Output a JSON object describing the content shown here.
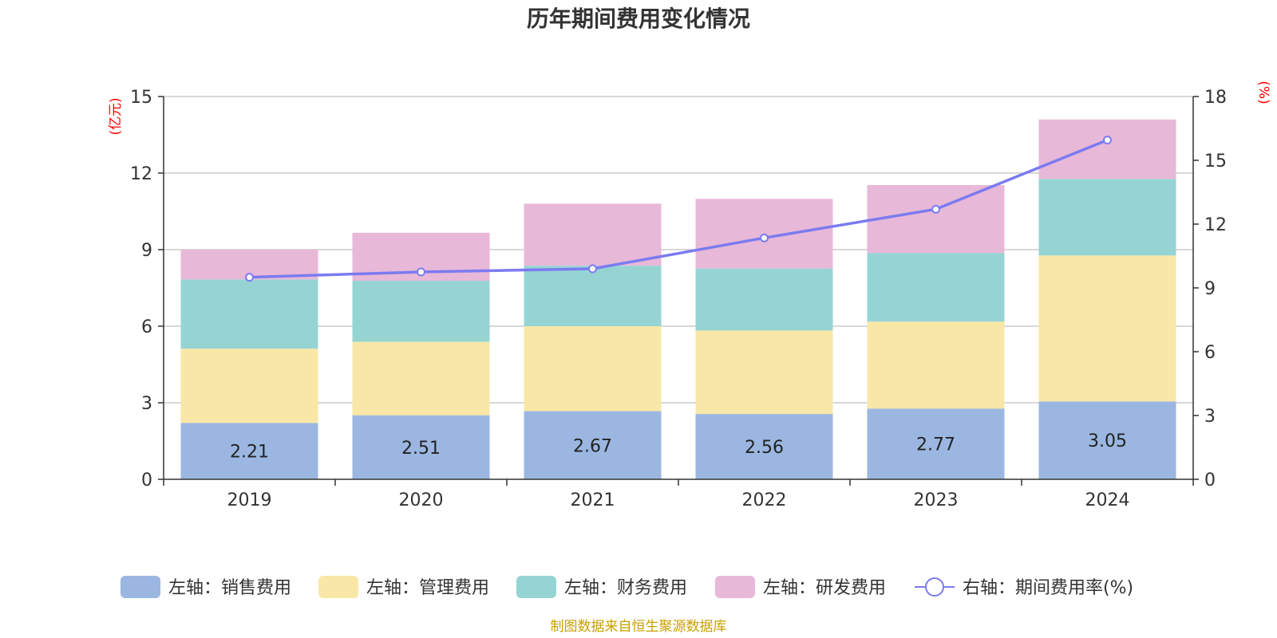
{
  "title": "历年期间费用变化情况",
  "source": "制图数据来自恒生聚源数据库",
  "colors": {
    "sales": "#9bb7e1",
    "admin": "#f8e7a7",
    "finance": "#96d4d4",
    "rd": "#e8b8d8",
    "rate_line": "#7b7bf0",
    "unit": "#ff0000",
    "source": "#c8a000"
  },
  "chart_data": {
    "type": "bar",
    "stacked": true,
    "title": "历年期间费用变化情况",
    "categories": [
      "2019",
      "2020",
      "2021",
      "2022",
      "2023",
      "2024"
    ],
    "left_axis": {
      "unit": "(亿元)",
      "ylim": [
        0,
        15
      ],
      "ticks": [
        "0",
        "3",
        "6",
        "9",
        "12",
        "15"
      ]
    },
    "right_axis": {
      "unit": "(%)",
      "ylim": [
        0,
        18
      ],
      "ticks": [
        "0",
        "3",
        "6",
        "9",
        "12",
        "15",
        "18"
      ]
    },
    "grid": true,
    "legend_position": "bottom",
    "series": [
      {
        "name": "左轴：销售费用",
        "key": "sales",
        "axis": "left",
        "values": [
          2.21,
          2.51,
          2.67,
          2.56,
          2.77,
          3.05
        ],
        "labels": [
          "2.21",
          "2.51",
          "2.67",
          "2.56",
          "2.77",
          "3.05"
        ]
      },
      {
        "name": "左轴：管理费用",
        "key": "admin",
        "axis": "left",
        "values": [
          2.91,
          2.88,
          3.33,
          3.27,
          3.41,
          5.72
        ]
      },
      {
        "name": "左轴：财务费用",
        "key": "finance",
        "axis": "left",
        "values": [
          2.71,
          2.39,
          2.37,
          2.43,
          2.69,
          3.0
        ]
      },
      {
        "name": "左轴：研发费用",
        "key": "rd",
        "axis": "left",
        "values": [
          1.17,
          1.88,
          2.43,
          2.73,
          2.66,
          2.33
        ]
      },
      {
        "name": "右轴：期间费用率(%)",
        "key": "rate_line",
        "type": "line",
        "axis": "right",
        "values": [
          9.5,
          9.75,
          9.9,
          11.35,
          12.7,
          15.95
        ]
      }
    ]
  }
}
